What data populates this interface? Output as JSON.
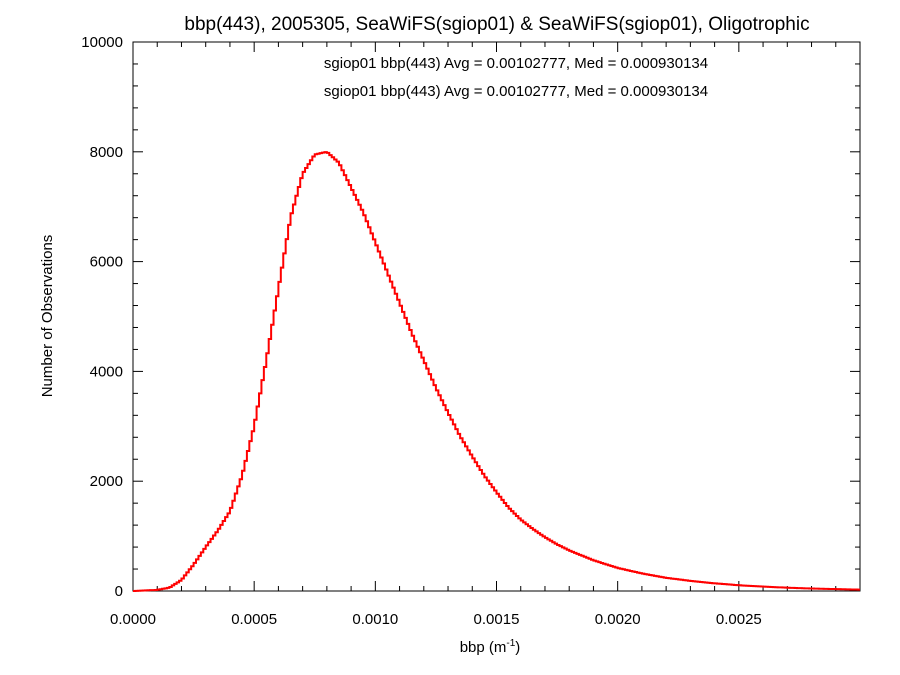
{
  "chart_data": {
    "type": "histogram",
    "title": "bbp(443), 2005305, SeaWiFS(sgiop01) & SeaWiFS(sgiop01), Oligotrophic",
    "xlabel_main": "bbp (m",
    "xlabel_sup": "-1",
    "xlabel_close": ")",
    "ylabel": "Number of Observations",
    "xlim": [
      0,
      0.003
    ],
    "ylim": [
      0,
      10000
    ],
    "x_ticks": [
      0.0,
      0.0005,
      0.001,
      0.0015,
      0.002,
      0.0025
    ],
    "x_tick_labels": [
      "0.0000",
      "0.0005",
      "0.0010",
      "0.0015",
      "0.0020",
      "0.0025"
    ],
    "y_ticks": [
      0,
      2000,
      4000,
      6000,
      8000,
      10000
    ],
    "y_tick_labels": [
      "0",
      "2000",
      "4000",
      "6000",
      "8000",
      "10000"
    ],
    "legend_position": "top-center",
    "annotations": [
      {
        "text": "sgiop01 bbp(443) Avg = 0.00102777, Med = 0.000930134",
        "color": "#000000"
      },
      {
        "text": "sgiop01 bbp(443) Avg = 0.00102777, Med = 0.000930134",
        "color": "#ff0000"
      }
    ],
    "series": [
      {
        "color": "#ff0000",
        "profile": [
          [
            0.0,
            0
          ],
          [
            0.0001,
            20
          ],
          [
            0.00015,
            60
          ],
          [
            0.0002,
            200
          ],
          [
            0.00025,
            480
          ],
          [
            0.0003,
            800
          ],
          [
            0.00035,
            1100
          ],
          [
            0.0004,
            1450
          ],
          [
            0.00045,
            2100
          ],
          [
            0.0005,
            3000
          ],
          [
            0.00055,
            4200
          ],
          [
            0.0006,
            5500
          ],
          [
            0.00065,
            6800
          ],
          [
            0.0007,
            7600
          ],
          [
            0.00075,
            7950
          ],
          [
            0.0008,
            8000
          ],
          [
            0.00085,
            7800
          ],
          [
            0.0009,
            7350
          ],
          [
            0.00095,
            6900
          ],
          [
            0.001,
            6350
          ],
          [
            0.00105,
            5800
          ],
          [
            0.0011,
            5250
          ],
          [
            0.00115,
            4700
          ],
          [
            0.0012,
            4200
          ],
          [
            0.00125,
            3700
          ],
          [
            0.0013,
            3250
          ],
          [
            0.00135,
            2820
          ],
          [
            0.0014,
            2450
          ],
          [
            0.00145,
            2100
          ],
          [
            0.0015,
            1800
          ],
          [
            0.00155,
            1520
          ],
          [
            0.0016,
            1300
          ],
          [
            0.00165,
            1130
          ],
          [
            0.0017,
            980
          ],
          [
            0.00175,
            850
          ],
          [
            0.0018,
            740
          ],
          [
            0.00185,
            650
          ],
          [
            0.0019,
            560
          ],
          [
            0.002,
            420
          ],
          [
            0.0021,
            320
          ],
          [
            0.0022,
            240
          ],
          [
            0.0023,
            185
          ],
          [
            0.0024,
            140
          ],
          [
            0.0025,
            105
          ],
          [
            0.0026,
            80
          ],
          [
            0.0027,
            60
          ],
          [
            0.0028,
            45
          ],
          [
            0.0029,
            35
          ],
          [
            0.003,
            25
          ]
        ],
        "bin_width": 1e-05
      }
    ]
  }
}
